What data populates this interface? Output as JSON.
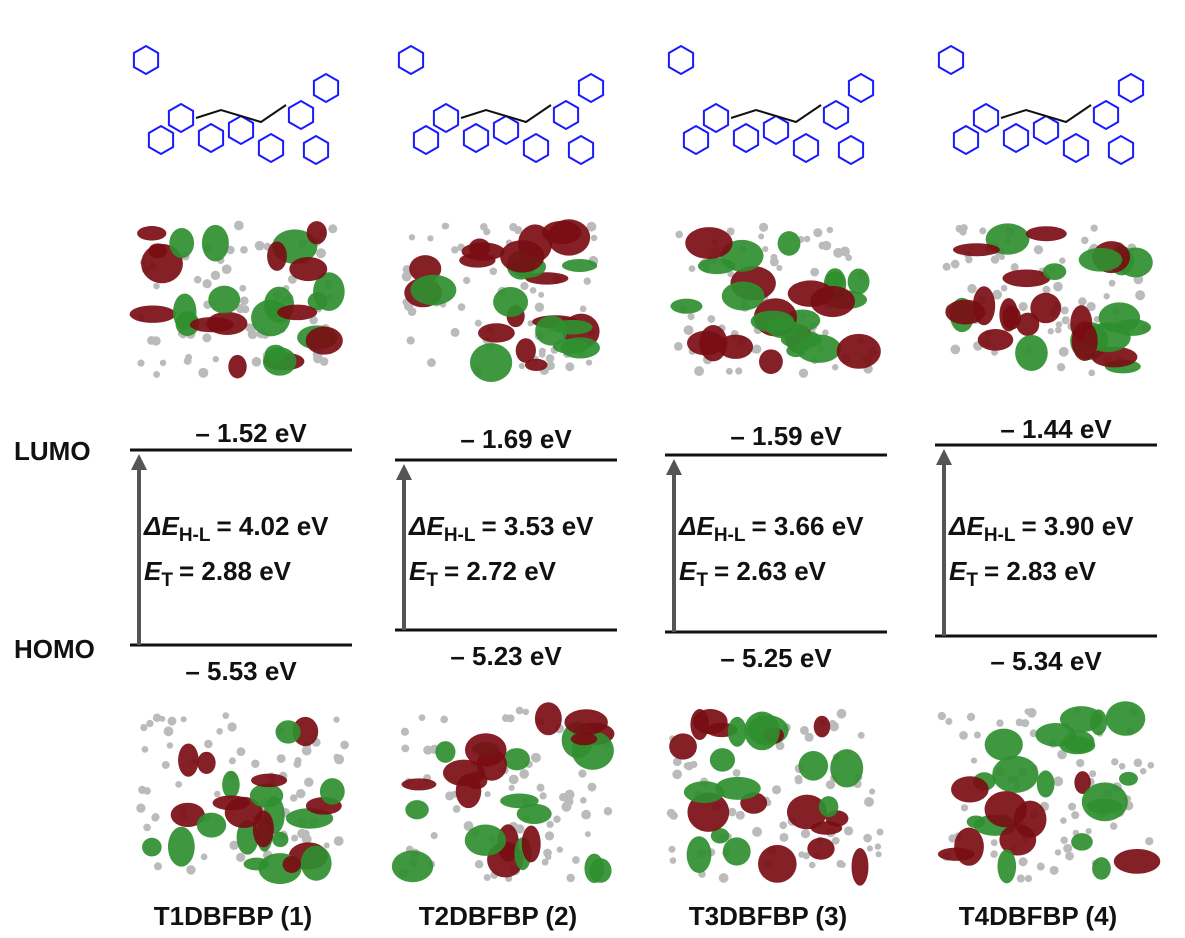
{
  "levels": {
    "lumo": "LUMO",
    "homo": "HOMO"
  },
  "compounds": [
    {
      "name": "T1DBFBP (1)",
      "lumo": "– 1.52 eV",
      "homo": "– 5.53 eV",
      "gap": {
        "symbol": "ΔE",
        "subscript": "H-L",
        "value": "=  4.02 eV"
      },
      "triplet": {
        "symbol": "E",
        "subscript": "T",
        "value": "= 2.88 eV"
      }
    },
    {
      "name": "T2DBFBP (2)",
      "lumo": "– 1.69 eV",
      "homo": "– 5.23 eV",
      "gap": {
        "symbol": "ΔE",
        "subscript": "H-L",
        "value": "=  3.53 eV"
      },
      "triplet": {
        "symbol": "E",
        "subscript": "T",
        "value": "= 2.72 eV"
      }
    },
    {
      "name": "T3DBFBP (3)",
      "lumo": "– 1.59 eV",
      "homo": "– 5.25 eV",
      "gap": {
        "symbol": "ΔE",
        "subscript": "H-L",
        "value": "=  3.66 eV"
      },
      "triplet": {
        "symbol": "E",
        "subscript": "T",
        "value": "= 2.63 eV"
      }
    },
    {
      "name": "T4DBFBP (4)",
      "lumo": "– 1.44 eV",
      "homo": "– 5.34 eV",
      "gap": {
        "symbol": "ΔE",
        "subscript": "H-L",
        "value": "=  3.90 eV"
      },
      "triplet": {
        "symbol": "E",
        "subscript": "T",
        "value": "= 2.83 eV"
      }
    }
  ]
}
